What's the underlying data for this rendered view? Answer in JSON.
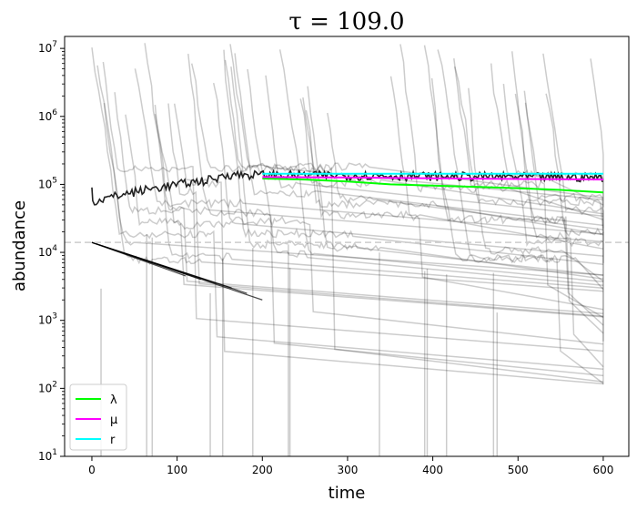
{
  "chart_data": {
    "type": "line",
    "title": "τ = 109.0",
    "xlabel": "time",
    "ylabel": "abundance",
    "xlim": [
      -32,
      630
    ],
    "ylim": [
      10,
      15000000
    ],
    "yscale": "log",
    "x_ticks": [
      0,
      100,
      200,
      300,
      400,
      500,
      600
    ],
    "y_ticks": [
      {
        "value": 10,
        "base": "10",
        "exp": "1"
      },
      {
        "value": 100,
        "base": "10",
        "exp": "2"
      },
      {
        "value": 1000,
        "base": "10",
        "exp": "3"
      },
      {
        "value": 10000,
        "base": "10",
        "exp": "4"
      },
      {
        "value": 100000,
        "base": "10",
        "exp": "5"
      },
      {
        "value": 1000000,
        "base": "10",
        "exp": "6"
      },
      {
        "value": 10000000,
        "base": "10",
        "exp": "7"
      }
    ],
    "reference_line": {
      "y": 14000,
      "color": "#cccccc",
      "style": "dashed"
    },
    "legend": {
      "placement": "lower-left",
      "entries": [
        {
          "label": "λ",
          "color": "#00ff00"
        },
        {
          "label": "μ",
          "color": "#ff00ff"
        },
        {
          "label": "r",
          "color": "#00ffff"
        }
      ]
    },
    "series": [
      {
        "name": "λ",
        "color": "#00ff00",
        "x": [
          200,
          250,
          300,
          350,
          400,
          450,
          500,
          550,
          600
        ],
        "y": [
          122000,
          118000,
          110000,
          100000,
          96000,
          92000,
          88000,
          83000,
          76000
        ]
      },
      {
        "name": "μ",
        "color": "#ff00ff",
        "x": [
          200,
          300,
          400,
          500,
          600
        ],
        "y": [
          128000,
          126000,
          123000,
          120000,
          118000
        ]
      },
      {
        "name": "r",
        "color": "#00ffff",
        "x": [
          200,
          300,
          400,
          500,
          600
        ],
        "y": [
          143000,
          143000,
          143000,
          143000,
          143000
        ]
      }
    ]
  }
}
